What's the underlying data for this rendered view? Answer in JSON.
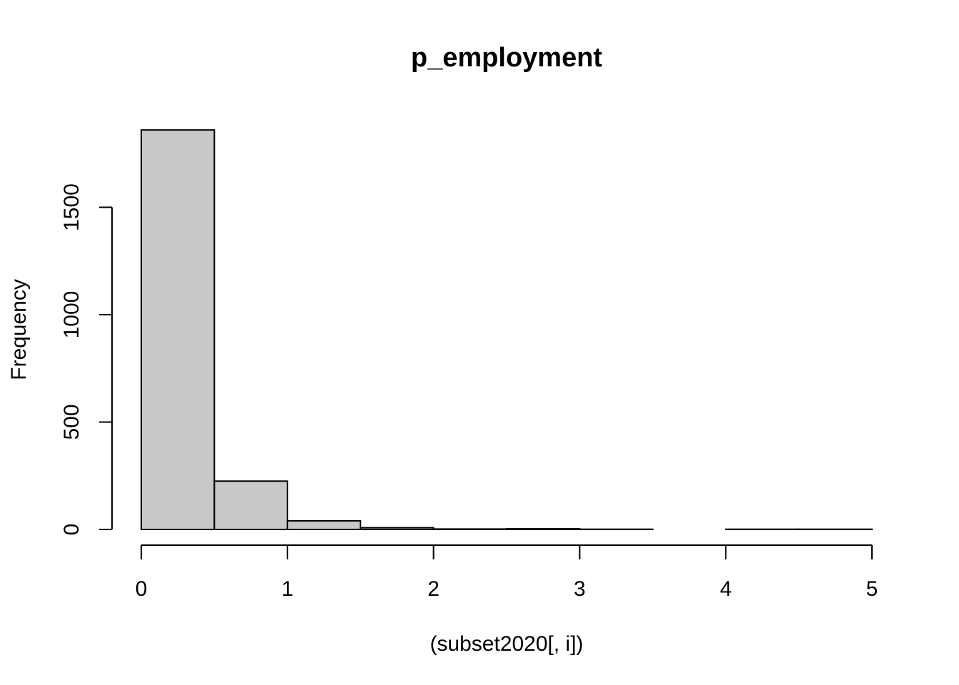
{
  "chart_data": {
    "type": "bar",
    "title": "p_employment",
    "xlabel": "(subset2020[, i])",
    "ylabel": "Frequency",
    "bins": [
      {
        "x0": 0.0,
        "x1": 0.5,
        "count": 1860
      },
      {
        "x0": 0.5,
        "x1": 1.0,
        "count": 225
      },
      {
        "x0": 1.0,
        "x1": 1.5,
        "count": 40
      },
      {
        "x0": 1.5,
        "x1": 2.0,
        "count": 8
      },
      {
        "x0": 2.0,
        "x1": 2.5,
        "count": 2
      },
      {
        "x0": 2.5,
        "x1": 3.0,
        "count": 3
      },
      {
        "x0": 3.0,
        "x1": 3.5,
        "count": 1
      },
      {
        "x0": 3.5,
        "x1": 4.0,
        "count": 0
      },
      {
        "x0": 4.0,
        "x1": 4.5,
        "count": 1
      },
      {
        "x0": 4.5,
        "x1": 5.0,
        "count": 1
      }
    ],
    "xlim": [
      0,
      5
    ],
    "ylim": [
      0,
      1860
    ],
    "x_ticks": [
      0,
      1,
      2,
      3,
      4,
      5
    ],
    "y_ticks": [
      0,
      500,
      1000,
      1500
    ],
    "grid": false,
    "legend": "none",
    "colors": {
      "bar_fill": "#c8c8c8",
      "bar_stroke": "#000000",
      "axis": "#000000",
      "background": "#ffffff"
    }
  }
}
